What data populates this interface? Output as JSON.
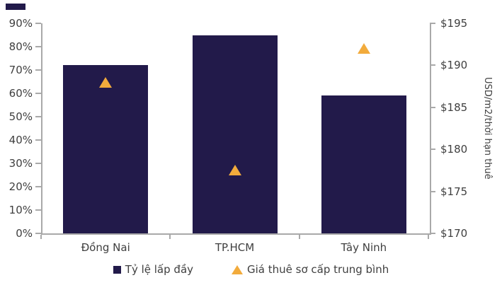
{
  "chart_data": {
    "type": "bar",
    "title": "",
    "categories": [
      "Đồng Nai",
      "TP.HCM",
      "Tây Ninh"
    ],
    "series": [
      {
        "name": "Tỷ lệ lấp đầy",
        "type": "bar",
        "axis": "left",
        "unit": "%",
        "values": [
          72,
          85,
          59
        ],
        "color": "#221A4A"
      },
      {
        "name": "Giá thuê sơ cấp trung bình",
        "type": "point-triangle",
        "axis": "right",
        "unit": "USD/m2",
        "values": [
          188,
          177.5,
          192
        ],
        "color": "#F2AB3C"
      }
    ],
    "left_axis": {
      "min": 0,
      "max": 90,
      "step": 10,
      "tick_labels": [
        "0%",
        "10%",
        "20%",
        "30%",
        "40%",
        "50%",
        "60%",
        "70%",
        "80%",
        "90%"
      ]
    },
    "right_axis": {
      "min": 170,
      "max": 195,
      "step": 5,
      "tick_labels": [
        "$170",
        "$175",
        "$180",
        "$185",
        "$190",
        "$195"
      ],
      "title": "USD/m2/thời hạn thuê"
    },
    "legend": [
      {
        "label": "Tỷ lệ lấp đầy",
        "marker": "square",
        "color": "#221A4A"
      },
      {
        "label": "Giá thuê sơ cấp trung bình",
        "marker": "triangle",
        "color": "#F2AB3C"
      }
    ],
    "legend_position": "bottom",
    "grid": false
  },
  "colors": {
    "bar": "#221A4A",
    "marker": "#F2AB3C",
    "axis_line": "#A9A9A9",
    "text": "#3F3F3F",
    "background": "#FFFFFF"
  }
}
